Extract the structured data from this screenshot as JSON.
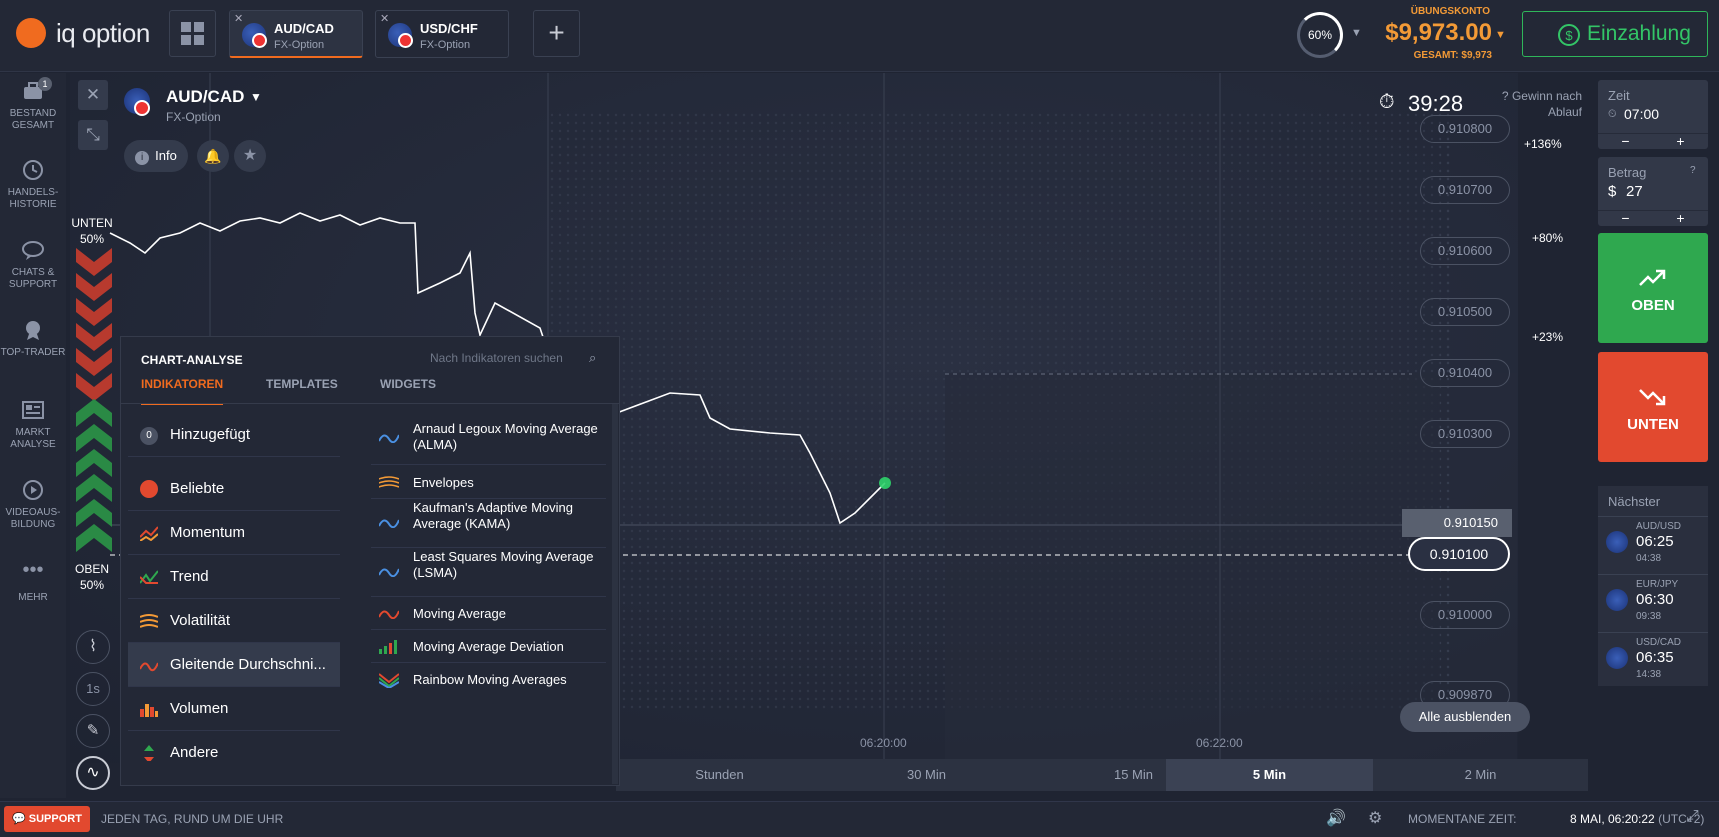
{
  "brand": {
    "name": "iq option"
  },
  "tabs": [
    {
      "pair": "AUD/CAD",
      "type": "FX-Option"
    },
    {
      "pair": "USD/CHF",
      "type": "FX-Option"
    }
  ],
  "header": {
    "profit_ring": "60%",
    "account_label": "ÜBUNGSKONTO",
    "balance": "$9,973.00",
    "total": "GESAMT: $9,973",
    "deposit_label": "Einzahlung"
  },
  "sidebar": {
    "items": [
      {
        "label": "BESTAND GESAMT",
        "badge": "1",
        "icon": "briefcase-icon"
      },
      {
        "label": "HANDELS-HISTORIE",
        "icon": "history-icon"
      },
      {
        "label": "CHATS & SUPPORT",
        "icon": "chat-icon"
      },
      {
        "label": "TOP-TRADER",
        "icon": "trophy-icon"
      },
      {
        "label": "MARKT ANALYSE",
        "icon": "news-icon"
      },
      {
        "label": "VIDEOAUS-BILDUNG",
        "icon": "play-icon"
      },
      {
        "label": "MEHR",
        "icon": "more-icon"
      }
    ]
  },
  "asset": {
    "name": "AUD/CAD",
    "type": "FX-Option",
    "info_label": "Info"
  },
  "chart": {
    "timer": "39:28",
    "gewinn_label": "Gewinn nach Ablauf",
    "unten": {
      "label": "UNTEN",
      "pct": "50%"
    },
    "oben": {
      "label": "OBEN",
      "pct": "50%"
    },
    "price_ticks": [
      "0.910800",
      "0.910700",
      "0.910600",
      "0.910500",
      "0.910400",
      "0.910300",
      "0.910000",
      "0.909870"
    ],
    "current_price": "0.910100",
    "last_price": "0.910150",
    "pct_levels": [
      "+136%",
      "+80%",
      "+23%"
    ],
    "time_ticks": [
      "06:20:00",
      "06:22:00"
    ],
    "interval_label": "1s",
    "alle_label": "Alle ausblenden"
  },
  "periods": [
    {
      "label": "Stunden"
    },
    {
      "label": "30 Min"
    },
    {
      "label": "15 Min"
    },
    {
      "label": "5 Min",
      "selected": true
    },
    {
      "label": "2 Min"
    }
  ],
  "panel": {
    "title": "CHART-ANALYSE",
    "search_placeholder": "Nach Indikatoren suchen",
    "tabs": [
      "INDIKATOREN",
      "TEMPLATES",
      "WIDGETS"
    ],
    "categories": [
      {
        "label": "Hinzugefügt",
        "badge": "0"
      },
      {
        "label": "Beliebte"
      },
      {
        "label": "Momentum"
      },
      {
        "label": "Trend"
      },
      {
        "label": "Volatilität"
      },
      {
        "label": "Gleitende Durchschni...",
        "selected": true
      },
      {
        "label": "Volumen"
      },
      {
        "label": "Andere"
      }
    ],
    "indicators": [
      "Arnaud Legoux Moving Average (ALMA)",
      "Envelopes",
      "Kaufman's Adaptive Moving Average (KAMA)",
      "Least Squares Moving Average (LSMA)",
      "Moving Average",
      "Moving Average Deviation",
      "Rainbow Moving Averages"
    ]
  },
  "right": {
    "zeit_label": "Zeit",
    "zeit_value": "07:00",
    "betrag_label": "Betrag",
    "betrag_currency": "$",
    "betrag_value": "27",
    "oben_label": "OBEN",
    "unten_label": "UNTEN",
    "next_label": "Nächster",
    "next_items": [
      {
        "pair": "AUD/USD",
        "time": "06:25",
        "sub": "04:38"
      },
      {
        "pair": "EUR/JPY",
        "time": "06:30",
        "sub": "09:38"
      },
      {
        "pair": "USD/CAD",
        "time": "06:35",
        "sub": "14:38"
      }
    ]
  },
  "footer": {
    "support_label": "SUPPORT",
    "tagline": "JEDEN TAG, RUND UM DIE UHR",
    "time_label": "MOMENTANE ZEIT:",
    "time_value": "8 MAI, 06:20:22",
    "tz": "(UTC+2)"
  },
  "colors": {
    "brand": "#f06b1f",
    "up": "#2fa84f",
    "down": "#e2492f",
    "balance": "#f39a36"
  }
}
